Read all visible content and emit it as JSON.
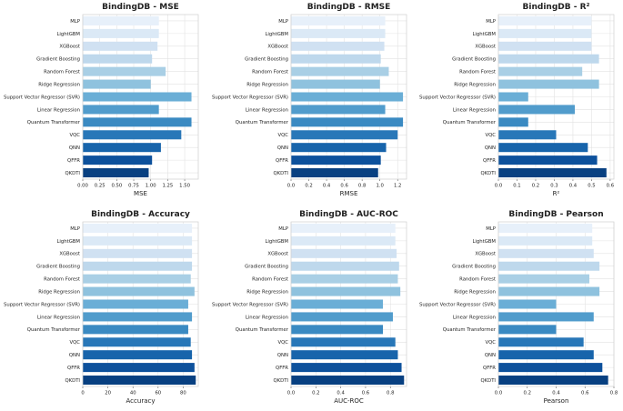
{
  "chart_data": [
    {
      "type": "bar",
      "orientation": "horizontal",
      "title": "BindingDB - MSE",
      "xlabel": "MSE",
      "xlim": [
        0,
        1.7
      ],
      "xticks": [
        0.0,
        0.25,
        0.5,
        0.75,
        1.0,
        1.25,
        1.5
      ],
      "xtick_labels": [
        "0.00",
        "0.25",
        "0.50",
        "0.75",
        "1.00",
        "1.25",
        "1.50"
      ],
      "categories": [
        "MLP",
        "LightGBM",
        "XGBoost",
        "Gradient Boosting",
        "Random Forest",
        "Ridge Regression",
        "Support Vector Regressor (SVR)",
        "Linear Regression",
        "Quantum Transformer",
        "VQC",
        "QNN",
        "QFFR",
        "QKDTI"
      ],
      "values": [
        1.12,
        1.12,
        1.1,
        1.02,
        1.22,
        1.0,
        1.6,
        1.12,
        1.6,
        1.45,
        1.15,
        1.02,
        0.97
      ]
    },
    {
      "type": "bar",
      "orientation": "horizontal",
      "title": "BindingDB - RMSE",
      "xlabel": "RMSE",
      "xlim": [
        0,
        1.3
      ],
      "xticks": [
        0.0,
        0.2,
        0.4,
        0.6,
        0.8,
        1.0,
        1.2
      ],
      "xtick_labels": [
        "0.0",
        "0.2",
        "0.4",
        "0.6",
        "0.8",
        "1.0",
        "1.2"
      ],
      "categories": [
        "MLP",
        "LightGBM",
        "XGBoost",
        "Gradient Boosting",
        "Random Forest",
        "Ridge Regression",
        "Support Vector Regressor (SVR)",
        "Linear Regression",
        "Quantum Transformer",
        "VQC",
        "QNN",
        "QFFR",
        "QKDTI"
      ],
      "values": [
        1.06,
        1.06,
        1.05,
        1.01,
        1.1,
        1.0,
        1.26,
        1.06,
        1.26,
        1.2,
        1.07,
        1.01,
        0.98
      ]
    },
    {
      "type": "bar",
      "orientation": "horizontal",
      "title": "BindingDB - R²",
      "xlabel": "R²",
      "xlim": [
        0,
        0.62
      ],
      "xticks": [
        0.0,
        0.1,
        0.2,
        0.3,
        0.4,
        0.5,
        0.6
      ],
      "xtick_labels": [
        "0.0",
        "0.1",
        "0.2",
        "0.3",
        "0.4",
        "0.5",
        "0.6"
      ],
      "categories": [
        "MLP",
        "LightGBM",
        "XGBoost",
        "Gradient Boosting",
        "Random Forest",
        "Ridge Regression",
        "Support Vector Regressor (SVR)",
        "Linear Regression",
        "Quantum Transformer",
        "VQC",
        "QNN",
        "QFFR",
        "QKDTI"
      ],
      "values": [
        0.5,
        0.5,
        0.5,
        0.54,
        0.45,
        0.54,
        0.16,
        0.41,
        0.16,
        0.31,
        0.48,
        0.53,
        0.58
      ]
    },
    {
      "type": "bar",
      "orientation": "horizontal",
      "title": "BindingDB - Accuracy",
      "xlabel": "Accuracy",
      "xlim": [
        0,
        92
      ],
      "xticks": [
        0,
        20,
        40,
        60,
        80
      ],
      "xtick_labels": [
        "0",
        "20",
        "40",
        "60",
        "80"
      ],
      "categories": [
        "MLP",
        "LightGBM",
        "XGBoost",
        "Gradient Boosting",
        "Random Forest",
        "Ridge Regression",
        "Support Vector Regressor (SVR)",
        "Linear Regression",
        "Quantum Transformer",
        "VQC",
        "QNN",
        "QFFR",
        "QKDTI"
      ],
      "values": [
        87,
        87,
        87,
        87,
        86,
        89,
        84,
        87,
        84,
        86,
        87,
        89,
        90
      ]
    },
    {
      "type": "bar",
      "orientation": "horizontal",
      "title": "BindingDB - AUC-ROC",
      "xlabel": "AUC-ROC",
      "xlim": [
        0,
        0.93
      ],
      "xticks": [
        0.0,
        0.2,
        0.4,
        0.6,
        0.8
      ],
      "xtick_labels": [
        "0.0",
        "0.2",
        "0.4",
        "0.6",
        "0.8"
      ],
      "categories": [
        "MLP",
        "LightGBM",
        "XGBoost",
        "Gradient Boosting",
        "Random Forest",
        "Ridge Regression",
        "Support Vector Regressor (SVR)",
        "Linear Regression",
        "Quantum Transformer",
        "VQC",
        "QNN",
        "QFFR",
        "QKDTI"
      ],
      "values": [
        0.84,
        0.84,
        0.85,
        0.87,
        0.86,
        0.88,
        0.74,
        0.82,
        0.74,
        0.84,
        0.86,
        0.89,
        0.91
      ]
    },
    {
      "type": "bar",
      "orientation": "horizontal",
      "title": "BindingDB - Pearson",
      "xlabel": "Pearson",
      "xlim": [
        0,
        0.8
      ],
      "xticks": [
        0.0,
        0.2,
        0.4,
        0.6,
        0.8
      ],
      "xtick_labels": [
        "0.0",
        "0.2",
        "0.4",
        "0.6",
        "0.8"
      ],
      "categories": [
        "MLP",
        "LightGBM",
        "XGBoost",
        "Gradient Boosting",
        "Random Forest",
        "Ridge Regression",
        "Support Vector Regressor (SVR)",
        "Linear Regression",
        "Quantum Transformer",
        "VQC",
        "QNN",
        "QFFR",
        "QKDTI"
      ],
      "values": [
        0.65,
        0.65,
        0.66,
        0.7,
        0.63,
        0.7,
        0.4,
        0.66,
        0.4,
        0.59,
        0.66,
        0.72,
        0.76
      ]
    }
  ],
  "colors": [
    "#e7f0fa",
    "#dbe9f6",
    "#d0e1f2",
    "#bed8ec",
    "#a9cfe5",
    "#8fc2de",
    "#6aaed6",
    "#519ccc",
    "#3a8ac2",
    "#2877b8",
    "#1764ab",
    "#0d519c",
    "#084081"
  ]
}
